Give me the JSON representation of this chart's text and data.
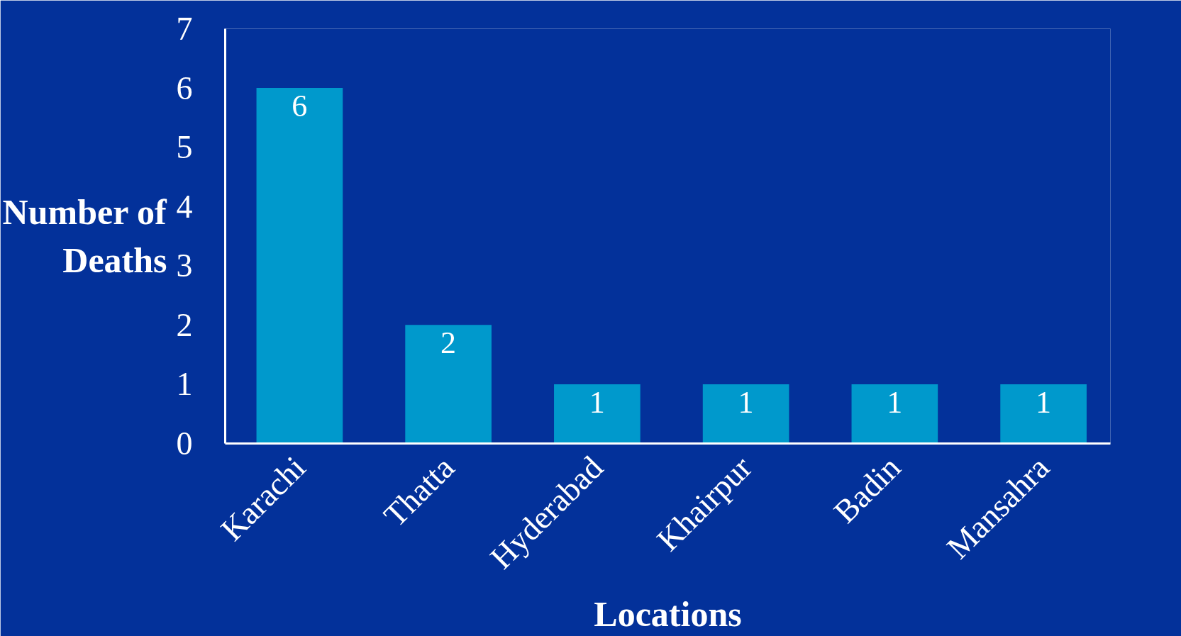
{
  "chart_data": {
    "type": "bar",
    "xlabel": "Locations",
    "ylabel": "Number of Deaths",
    "categories": [
      "Karachi",
      "Thatta",
      "Hyderabad",
      "Khairpur",
      "Badin",
      "Mansahra"
    ],
    "values": [
      6,
      2,
      1,
      1,
      1,
      1
    ],
    "color": "#0099cc",
    "ylim": [
      0,
      7
    ],
    "yticks": [
      0,
      1,
      2,
      3,
      4,
      5,
      6,
      7
    ],
    "grid": false,
    "data_labels": true
  }
}
